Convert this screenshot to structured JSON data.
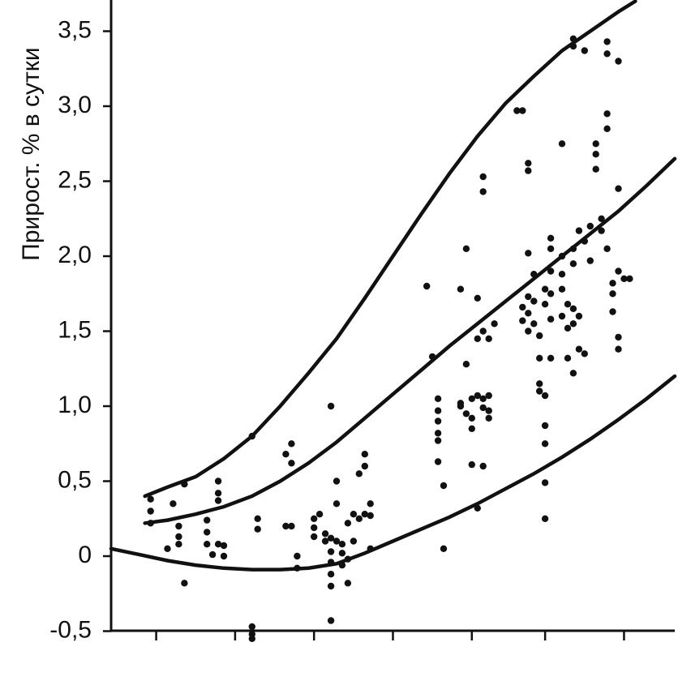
{
  "chart_data": {
    "type": "scatter",
    "title": "",
    "ylabel": "Прирост. % в сутки",
    "xlabel": "",
    "ylim": [
      -0.5,
      3.7
    ],
    "xlim": [
      0,
      100
    ],
    "yticks": [
      -0.5,
      0,
      0.5,
      1.0,
      1.5,
      2.0,
      2.5,
      3.0,
      3.5
    ],
    "ytick_labels": [
      "-0,5",
      "0",
      "0,5",
      "1,0",
      "1,5",
      "2,0",
      "2,5",
      "3,0",
      "3,5"
    ],
    "xticks": [
      8,
      22,
      36,
      50,
      64,
      77,
      91
    ],
    "grid": false,
    "points": [
      [
        7,
        0.38
      ],
      [
        7,
        0.3
      ],
      [
        7,
        0.22
      ],
      [
        10,
        0.05
      ],
      [
        11,
        0.35
      ],
      [
        12,
        0.2
      ],
      [
        12,
        0.13
      ],
      [
        12,
        0.08
      ],
      [
        13,
        0.48
      ],
      [
        13,
        -0.18
      ],
      [
        17,
        0.24
      ],
      [
        17,
        0.16
      ],
      [
        17,
        0.08
      ],
      [
        18,
        0.01
      ],
      [
        19,
        0.08
      ],
      [
        19,
        0.5
      ],
      [
        19,
        0.42
      ],
      [
        19,
        0.37
      ],
      [
        20,
        0.07
      ],
      [
        20,
        0.0
      ],
      [
        25,
        0.8
      ],
      [
        25,
        -0.47
      ],
      [
        25,
        -0.52
      ],
      [
        25,
        -0.55
      ],
      [
        26,
        0.25
      ],
      [
        26,
        0.18
      ],
      [
        31,
        0.68
      ],
      [
        31,
        0.2
      ],
      [
        32,
        0.75
      ],
      [
        32,
        0.62
      ],
      [
        32,
        0.2
      ],
      [
        33,
        -0.08
      ],
      [
        33,
        0.0
      ],
      [
        36,
        0.25
      ],
      [
        36,
        0.19
      ],
      [
        36,
        0.13
      ],
      [
        37,
        0.28
      ],
      [
        38,
        0.15
      ],
      [
        38,
        0.1
      ],
      [
        39,
        1.0
      ],
      [
        39,
        0.12
      ],
      [
        39,
        0.03
      ],
      [
        39,
        -0.04
      ],
      [
        39,
        -0.12
      ],
      [
        39,
        -0.2
      ],
      [
        39,
        -0.43
      ],
      [
        40,
        0.5
      ],
      [
        40,
        0.35
      ],
      [
        40,
        0.1
      ],
      [
        41,
        0.08
      ],
      [
        41,
        0.02
      ],
      [
        41,
        -0.06
      ],
      [
        42,
        0.22
      ],
      [
        42,
        -0.02
      ],
      [
        42,
        -0.18
      ],
      [
        43,
        0.28
      ],
      [
        43,
        0.1
      ],
      [
        44,
        0.55
      ],
      [
        44,
        0.25
      ],
      [
        45,
        0.68
      ],
      [
        45,
        0.6
      ],
      [
        45,
        0.28
      ],
      [
        46,
        0.35
      ],
      [
        46,
        0.27
      ],
      [
        46,
        0.05
      ],
      [
        56,
        1.8
      ],
      [
        57,
        1.33
      ],
      [
        58,
        1.05
      ],
      [
        58,
        0.97
      ],
      [
        58,
        0.9
      ],
      [
        58,
        0.82
      ],
      [
        58,
        0.77
      ],
      [
        58,
        0.63
      ],
      [
        59,
        0.47
      ],
      [
        59,
        0.05
      ],
      [
        62,
        1.78
      ],
      [
        62,
        1.02
      ],
      [
        62,
        1.0
      ],
      [
        63,
        2.05
      ],
      [
        63,
        1.28
      ],
      [
        63,
        0.95
      ],
      [
        64,
        1.05
      ],
      [
        64,
        0.92
      ],
      [
        64,
        0.85
      ],
      [
        64,
        0.61
      ],
      [
        65,
        1.72
      ],
      [
        65,
        1.45
      ],
      [
        65,
        1.07
      ],
      [
        65,
        0.32
      ],
      [
        66,
        2.53
      ],
      [
        66,
        2.43
      ],
      [
        66,
        1.5
      ],
      [
        66,
        1.05
      ],
      [
        66,
        0.99
      ],
      [
        66,
        0.6
      ],
      [
        67,
        1.07
      ],
      [
        67,
        0.97
      ],
      [
        67,
        0.92
      ],
      [
        67,
        1.45
      ],
      [
        68,
        1.55
      ],
      [
        72,
        2.97
      ],
      [
        73,
        2.97
      ],
      [
        73,
        1.66
      ],
      [
        73,
        1.57
      ],
      [
        74,
        2.62
      ],
      [
        74,
        2.57
      ],
      [
        74,
        2.02
      ],
      [
        74,
        1.73
      ],
      [
        74,
        1.62
      ],
      [
        74,
        1.5
      ],
      [
        75,
        1.88
      ],
      [
        75,
        1.7
      ],
      [
        75,
        1.55
      ],
      [
        76,
        1.47
      ],
      [
        76,
        1.32
      ],
      [
        76,
        1.15
      ],
      [
        76,
        1.1
      ],
      [
        77,
        1.78
      ],
      [
        77,
        1.68
      ],
      [
        77,
        1.07
      ],
      [
        77,
        0.87
      ],
      [
        77,
        0.75
      ],
      [
        77,
        0.49
      ],
      [
        77,
        0.25
      ],
      [
        78,
        2.12
      ],
      [
        78,
        2.05
      ],
      [
        78,
        1.9
      ],
      [
        78,
        1.75
      ],
      [
        78,
        1.58
      ],
      [
        78,
        1.32
      ],
      [
        80,
        2.75
      ],
      [
        80,
        2.0
      ],
      [
        80,
        1.88
      ],
      [
        80,
        1.78
      ],
      [
        80,
        1.6
      ],
      [
        81,
        1.68
      ],
      [
        81,
        1.52
      ],
      [
        81,
        1.32
      ],
      [
        82,
        3.45
      ],
      [
        82,
        3.4
      ],
      [
        82,
        2.05
      ],
      [
        82,
        1.95
      ],
      [
        82,
        1.65
      ],
      [
        82,
        1.55
      ],
      [
        82,
        1.22
      ],
      [
        83,
        2.17
      ],
      [
        83,
        1.6
      ],
      [
        83,
        1.38
      ],
      [
        84,
        2.1
      ],
      [
        84,
        1.35
      ],
      [
        84,
        3.37
      ],
      [
        85,
        2.2
      ],
      [
        85,
        1.97
      ],
      [
        86,
        2.75
      ],
      [
        86,
        2.68
      ],
      [
        86,
        2.58
      ],
      [
        87,
        2.25
      ],
      [
        87,
        2.17
      ],
      [
        88,
        3.43
      ],
      [
        88,
        3.35
      ],
      [
        88,
        2.95
      ],
      [
        88,
        2.85
      ],
      [
        88,
        2.05
      ],
      [
        89,
        1.82
      ],
      [
        89,
        1.75
      ],
      [
        89,
        1.63
      ],
      [
        90,
        3.3
      ],
      [
        90,
        2.45
      ],
      [
        90,
        1.9
      ],
      [
        90,
        1.46
      ],
      [
        90,
        1.38
      ],
      [
        91,
        1.85
      ],
      [
        92,
        1.85
      ]
    ],
    "curves": [
      {
        "x": [
          6,
          10,
          15,
          20,
          25,
          30,
          35,
          40,
          45,
          50,
          55,
          60,
          65,
          70,
          75,
          80,
          85,
          90,
          93
        ],
        "y": [
          0.4,
          0.46,
          0.53,
          0.65,
          0.8,
          1.0,
          1.22,
          1.45,
          1.72,
          2.0,
          2.28,
          2.55,
          2.8,
          3.02,
          3.2,
          3.37,
          3.5,
          3.63,
          3.7
        ]
      },
      {
        "x": [
          6,
          10,
          15,
          20,
          25,
          30,
          35,
          40,
          45,
          50,
          55,
          60,
          65,
          70,
          75,
          80,
          85,
          90,
          95,
          100
        ],
        "y": [
          0.22,
          0.24,
          0.28,
          0.33,
          0.4,
          0.5,
          0.62,
          0.76,
          0.92,
          1.08,
          1.24,
          1.4,
          1.55,
          1.7,
          1.85,
          2.0,
          2.15,
          2.3,
          2.47,
          2.65
        ]
      },
      {
        "x": [
          0,
          5,
          10,
          15,
          20,
          25,
          30,
          35,
          40,
          45,
          50,
          55,
          60,
          65,
          70,
          75,
          80,
          85,
          90,
          95,
          100
        ],
        "y": [
          0.05,
          0.01,
          -0.03,
          -0.06,
          -0.08,
          -0.09,
          -0.09,
          -0.08,
          -0.05,
          0.02,
          0.1,
          0.18,
          0.26,
          0.35,
          0.45,
          0.55,
          0.66,
          0.78,
          0.91,
          1.05,
          1.2
        ]
      }
    ]
  }
}
